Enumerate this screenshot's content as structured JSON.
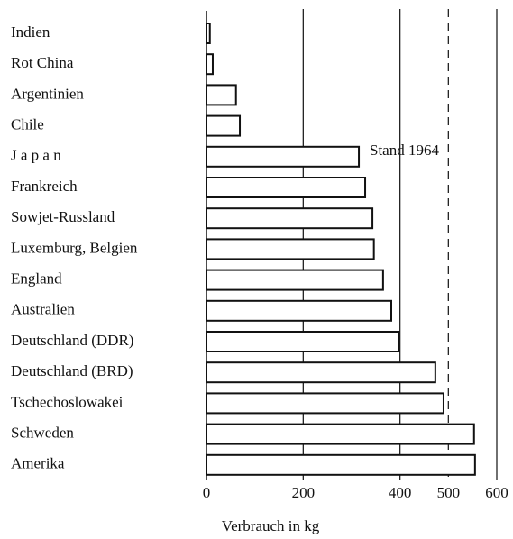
{
  "chart_data": {
    "type": "hbar",
    "categories": [
      "Indien",
      "Rot China",
      "Argentinien",
      "Chile",
      "J a p a n",
      "Frankreich",
      "Sowjet-Russland",
      "Luxemburg, Belgien",
      "England",
      "Australien",
      "Deutschland (DDR)",
      "Deutschland (BRD)",
      "Tschechoslowakei",
      "Schweden",
      "Amerika"
    ],
    "values": [
      7,
      13,
      61,
      69,
      315,
      328,
      343,
      346,
      365,
      382,
      398,
      473,
      490,
      553,
      555
    ],
    "color": "#ffffff",
    "edge_color": "#111111",
    "xlim": [
      0,
      600
    ],
    "xticks": [
      0,
      200,
      400,
      500,
      600
    ],
    "grid": true,
    "grid_dashed": [
      false,
      false,
      false,
      true,
      false
    ],
    "xlabel": "Verbrauch in kg",
    "annotation": "Stand 1964"
  }
}
